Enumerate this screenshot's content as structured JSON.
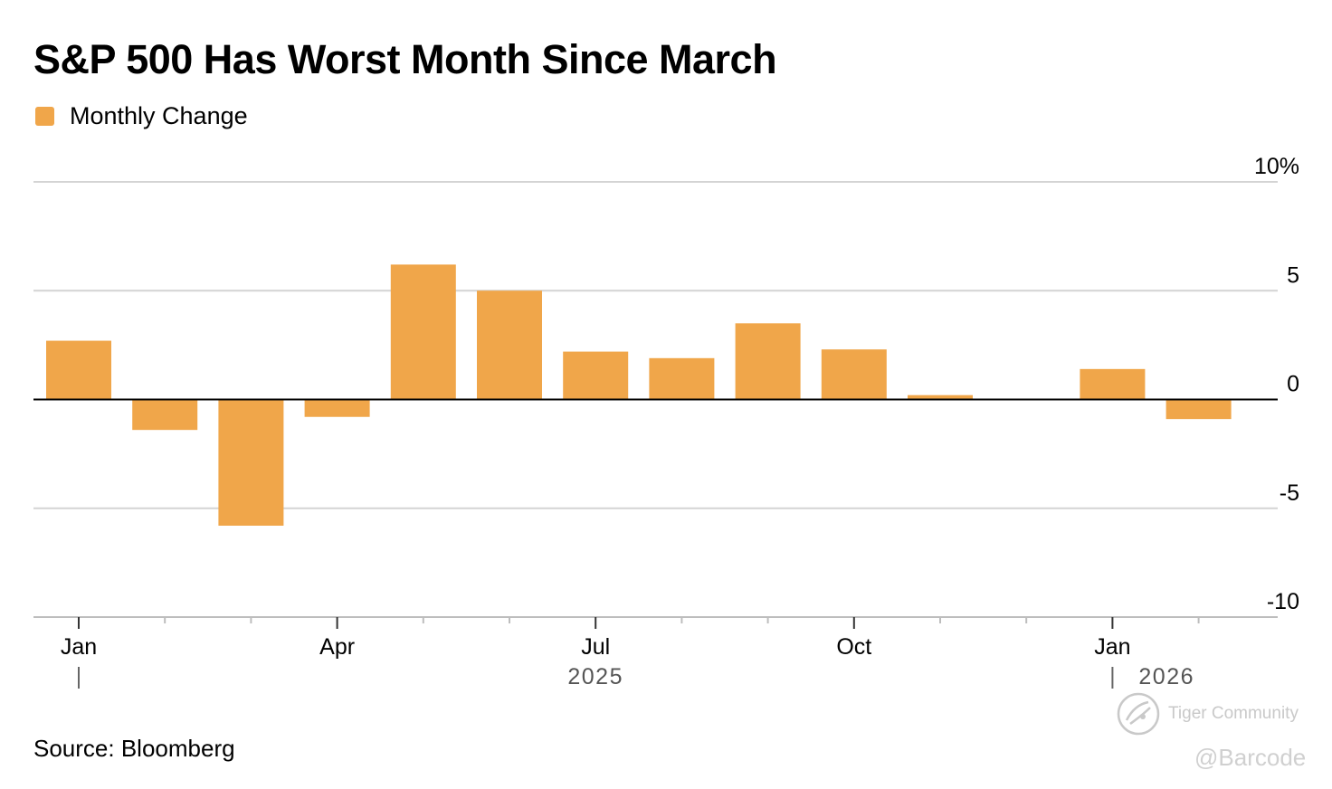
{
  "header": {
    "title": "S&P 500 Has Worst Month Since March"
  },
  "legend": {
    "label": "Monthly Change",
    "color": "#F0A64A"
  },
  "chart_data": {
    "type": "bar",
    "title": "S&P 500 Has Worst Month Since March",
    "series": [
      {
        "name": "Monthly Change",
        "color": "#F0A64A",
        "values": [
          2.7,
          -1.4,
          -5.8,
          -0.8,
          6.2,
          5.0,
          2.2,
          1.9,
          3.5,
          2.3,
          0.2,
          -0.05,
          1.4,
          -0.9
        ]
      }
    ],
    "categories": [
      "Jan 2025",
      "Feb 2025",
      "Mar 2025",
      "Apr 2025",
      "May 2025",
      "Jun 2025",
      "Jul 2025",
      "Aug 2025",
      "Sep 2025",
      "Oct 2025",
      "Nov 2025",
      "Dec 2025",
      "Jan 2026",
      "Feb 2026"
    ],
    "ylim": [
      -10,
      10
    ],
    "yticks": [
      {
        "value": 10,
        "label": "10%"
      },
      {
        "value": 5,
        "label": "5"
      },
      {
        "value": 0,
        "label": "0"
      },
      {
        "value": -5,
        "label": "-5"
      },
      {
        "value": -10,
        "label": "-10"
      }
    ],
    "xtick_labels": [
      {
        "index": 0,
        "label": "Jan"
      },
      {
        "index": 3,
        "label": "Apr"
      },
      {
        "index": 6,
        "label": "Jul"
      },
      {
        "index": 9,
        "label": "Oct"
      },
      {
        "index": 12,
        "label": "Jan"
      }
    ],
    "year_labels": [
      {
        "index": 6,
        "label": "2025"
      },
      {
        "index": 12,
        "label": "2026"
      }
    ],
    "year_dividers": [
      0,
      12
    ],
    "xlabel": "",
    "ylabel": "",
    "grid": true,
    "legend_position": "top-left"
  },
  "footer": {
    "source": "Source: Bloomberg"
  },
  "watermark": {
    "community": "Tiger Community",
    "handle": "@Barcode"
  }
}
